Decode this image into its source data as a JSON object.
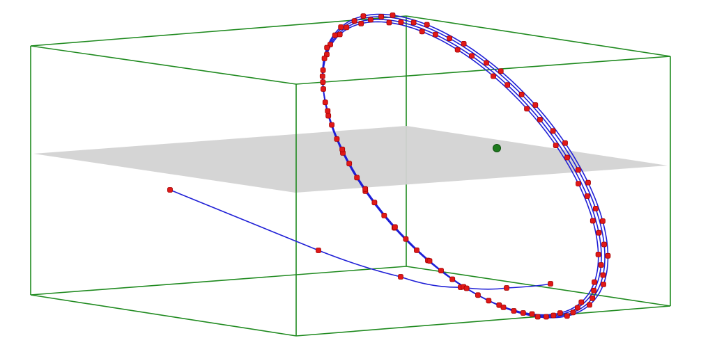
{
  "scene": {
    "description_free": true,
    "colors": {
      "box_edges": "#1f8a1f",
      "plane_fill": "#d3d3d3",
      "trajectory": "#1f1fd6",
      "sample_points": "#e01818",
      "sample_point_stroke": "#a00000",
      "center_point": "#1e7a1e"
    },
    "orbit": {
      "loops": 4,
      "spiral_drift": [
        0.0,
        0.35,
        0.75,
        1.1
      ],
      "approach_segments": 3
    }
  }
}
